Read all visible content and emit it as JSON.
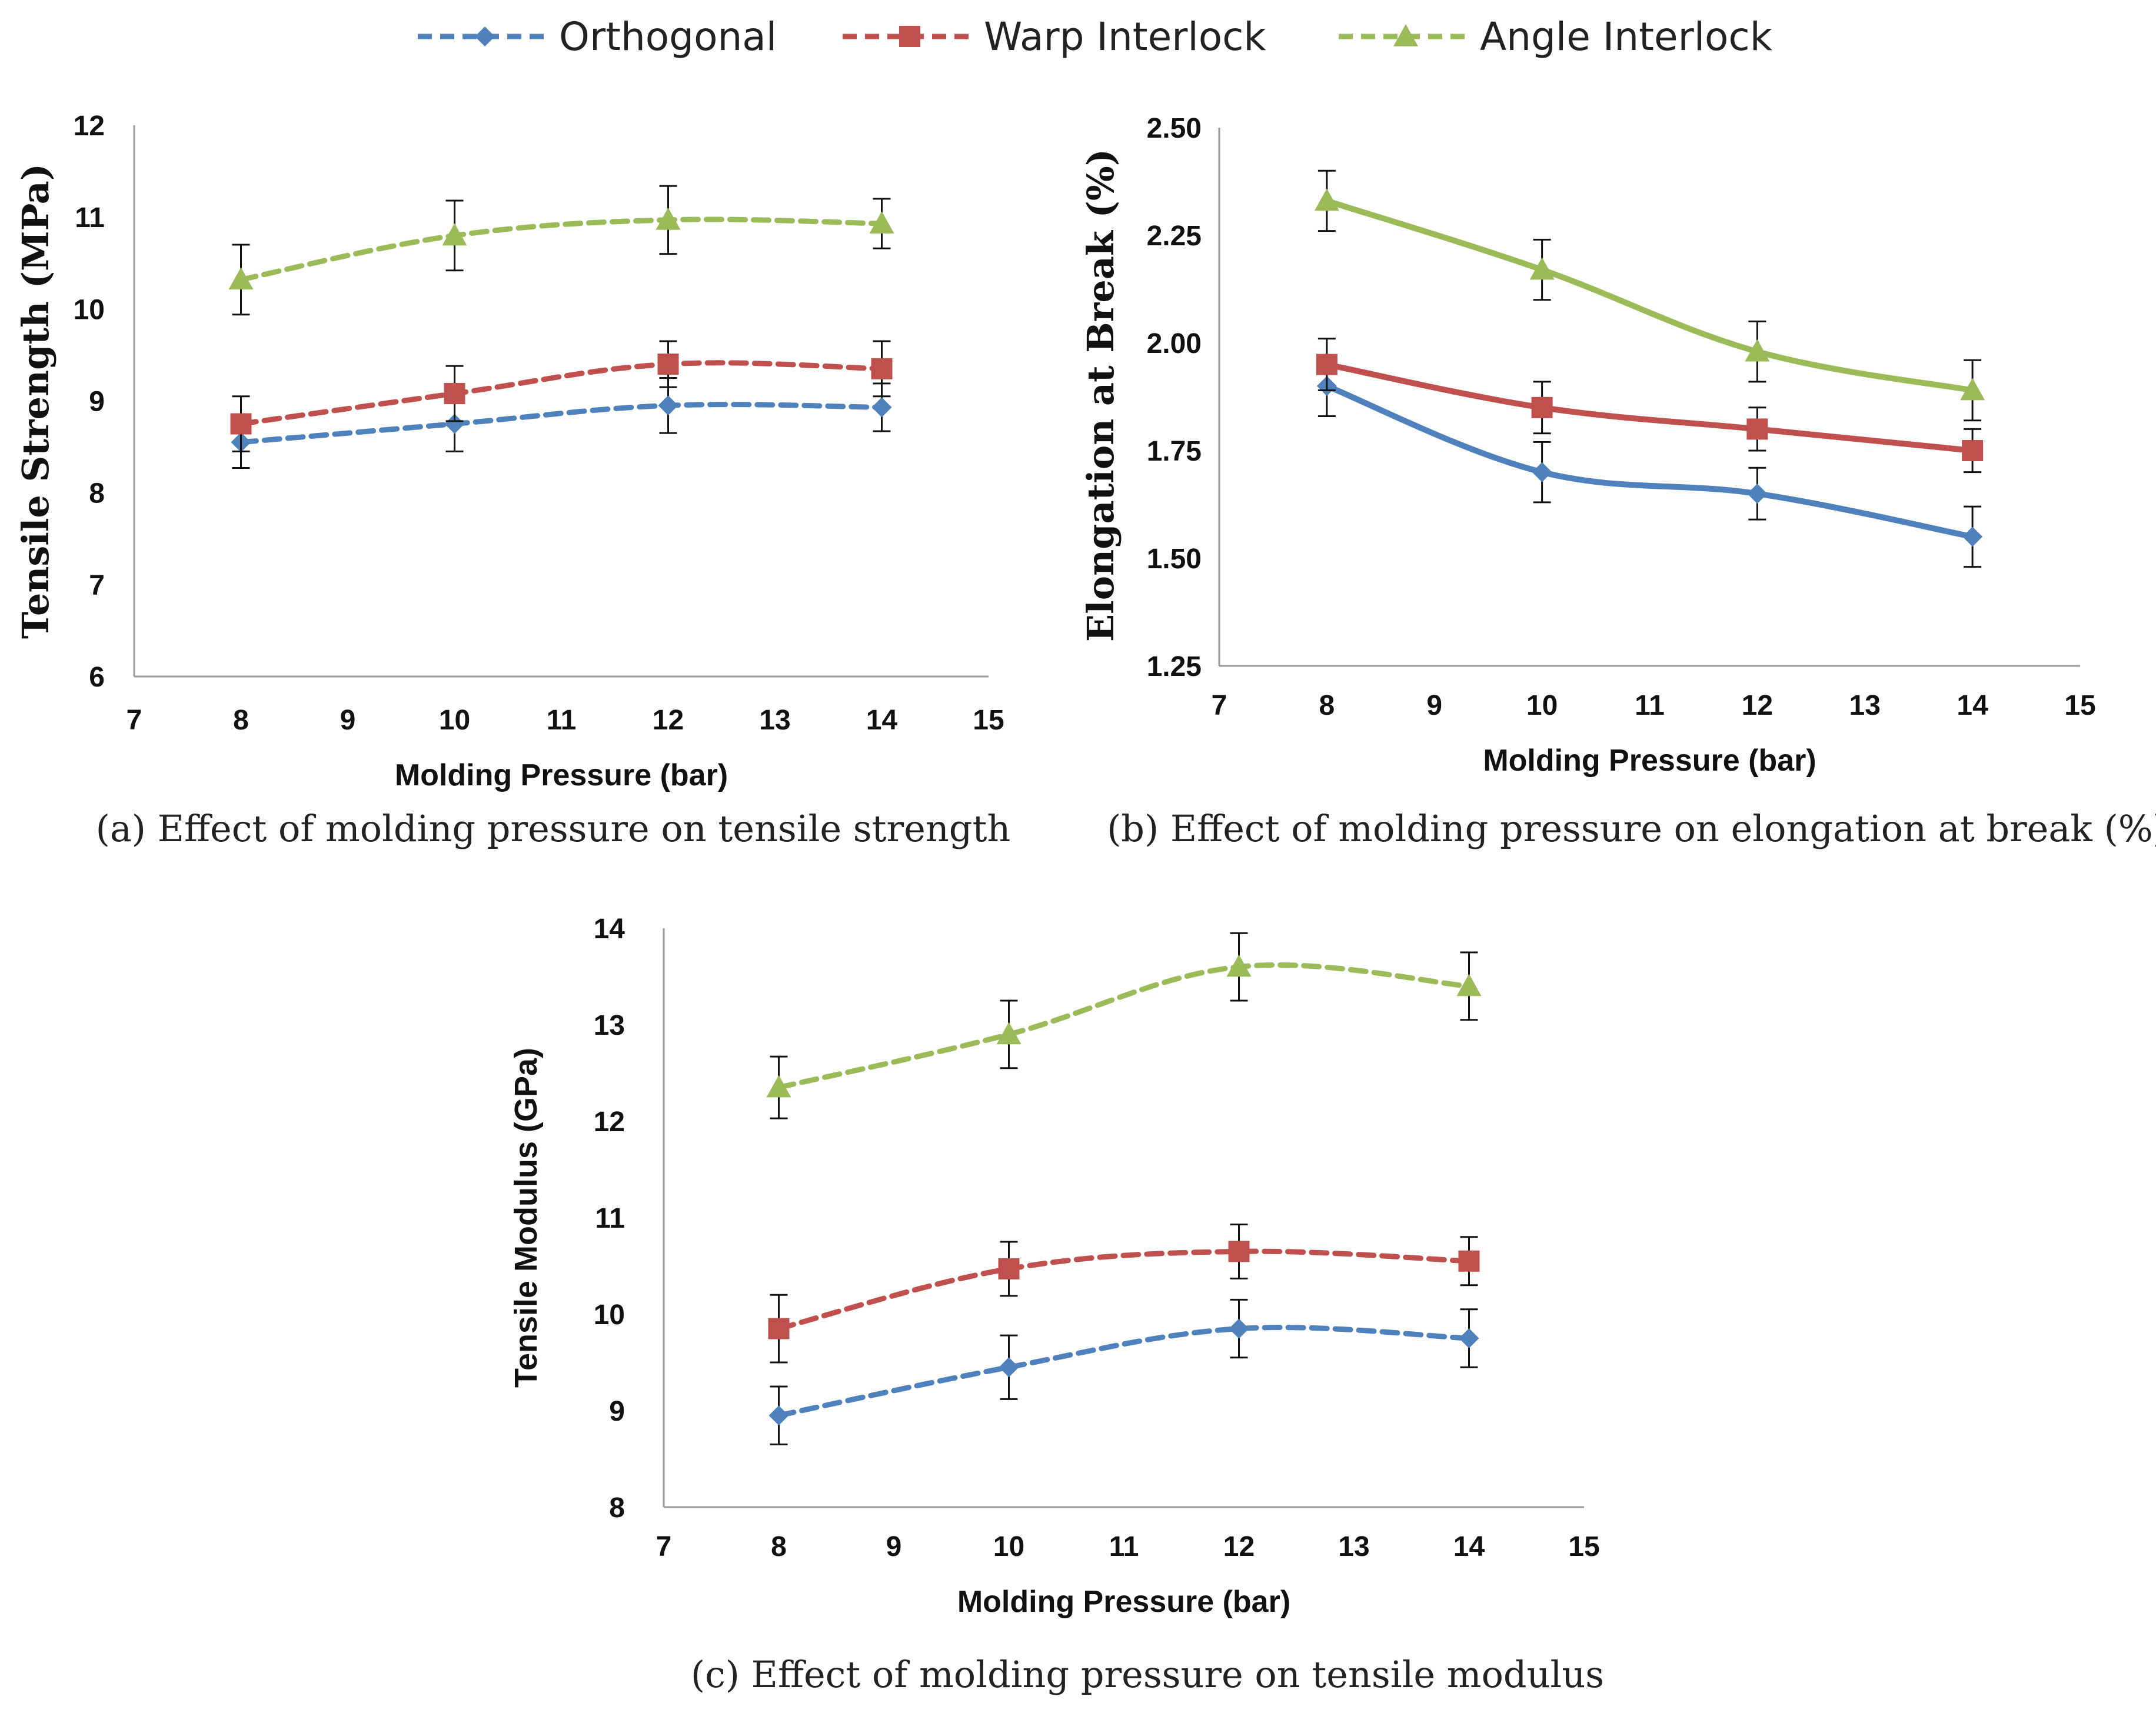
{
  "legend": [
    {
      "name": "Orthogonal",
      "color": "#4f81bd",
      "marker": "diamond"
    },
    {
      "name": "Warp Interlock",
      "color": "#c0504d",
      "marker": "square"
    },
    {
      "name": "Angle Interlock",
      "color": "#9bbb59",
      "marker": "triangle"
    }
  ],
  "chart_data": [
    {
      "id": "a",
      "type": "line",
      "line_style": "dashed",
      "caption": "(a) Effect of molding pressure on tensile strength",
      "xlabel": "Molding Pressure (bar)",
      "ylabel": "Tensile Strength (MPa)",
      "xlim": [
        7,
        15
      ],
      "ylim": [
        6,
        12
      ],
      "xticks": [
        "7",
        "8",
        "9",
        "10",
        "11",
        "12",
        "13",
        "14",
        "15"
      ],
      "yticks": [
        "6",
        "7",
        "8",
        "9",
        "10",
        "11",
        "12"
      ],
      "x": [
        8,
        10,
        12,
        14
      ],
      "series": [
        {
          "name": "Orthogonal",
          "values": [
            8.55,
            8.75,
            8.95,
            8.93
          ],
          "errors": [
            0.28,
            0.3,
            0.3,
            0.26
          ]
        },
        {
          "name": "Warp Interlock",
          "values": [
            8.75,
            9.08,
            9.4,
            9.35
          ],
          "errors": [
            0.3,
            0.3,
            0.25,
            0.3
          ]
        },
        {
          "name": "Angle Interlock",
          "values": [
            10.32,
            10.8,
            10.97,
            10.93
          ],
          "errors": [
            0.38,
            0.38,
            0.37,
            0.27
          ]
        }
      ]
    },
    {
      "id": "b",
      "type": "line",
      "line_style": "solid",
      "caption": "(b) Effect of molding pressure on elongation at break (%)",
      "xlabel": "Molding Pressure (bar)",
      "ylabel": "Elongation at Break (%)",
      "xlim": [
        7,
        15
      ],
      "ylim": [
        1.25,
        2.5
      ],
      "xticks": [
        "7",
        "8",
        "9",
        "10",
        "11",
        "12",
        "13",
        "14",
        "15"
      ],
      "yticks": [
        "1.25",
        "1.50",
        "1.75",
        "2.00",
        "2.25",
        "2.50"
      ],
      "x": [
        8,
        10,
        12,
        14
      ],
      "series": [
        {
          "name": "Orthogonal",
          "values": [
            1.9,
            1.7,
            1.65,
            1.55
          ],
          "errors": [
            0.07,
            0.07,
            0.06,
            0.07
          ]
        },
        {
          "name": "Warp Interlock",
          "values": [
            1.95,
            1.85,
            1.8,
            1.75
          ],
          "errors": [
            0.06,
            0.06,
            0.05,
            0.05
          ]
        },
        {
          "name": "Angle Interlock",
          "values": [
            2.33,
            2.17,
            1.98,
            1.89
          ],
          "errors": [
            0.07,
            0.07,
            0.07,
            0.07
          ]
        }
      ]
    },
    {
      "id": "c",
      "type": "line",
      "line_style": "dashed",
      "caption": "(c) Effect of molding pressure on tensile modulus",
      "xlabel": "Molding Pressure (bar)",
      "ylabel": "Tensile Modulus (GPa)",
      "xlim": [
        7,
        15
      ],
      "ylim": [
        8,
        14
      ],
      "xticks": [
        "7",
        "8",
        "9",
        "10",
        "11",
        "12",
        "13",
        "14",
        "15"
      ],
      "yticks": [
        "8",
        "9",
        "10",
        "11",
        "12",
        "13",
        "14"
      ],
      "x": [
        8,
        10,
        12,
        14
      ],
      "series": [
        {
          "name": "Orthogonal",
          "values": [
            8.95,
            9.45,
            9.85,
            9.75
          ],
          "errors": [
            0.3,
            0.33,
            0.3,
            0.3
          ]
        },
        {
          "name": "Warp Interlock",
          "values": [
            9.85,
            10.47,
            10.65,
            10.55
          ],
          "errors": [
            0.35,
            0.28,
            0.28,
            0.25
          ]
        },
        {
          "name": "Angle Interlock",
          "values": [
            12.35,
            12.9,
            13.6,
            13.4
          ],
          "errors": [
            0.32,
            0.35,
            0.35,
            0.35
          ]
        }
      ]
    }
  ]
}
